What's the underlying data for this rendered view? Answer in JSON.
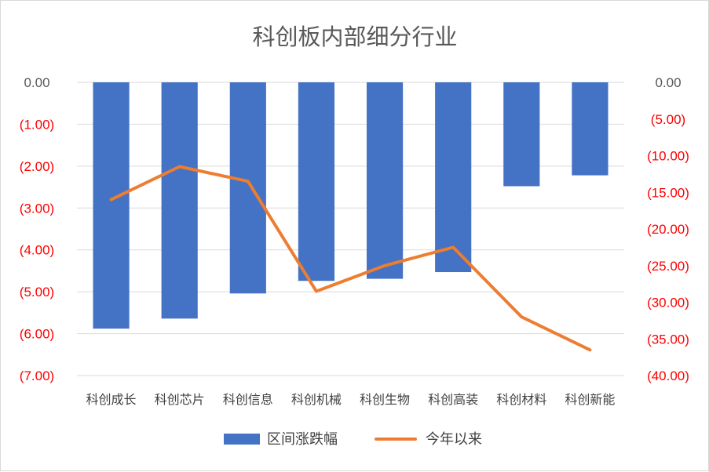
{
  "chart_data": {
    "type": "bar",
    "title": "科创板内部细分行业",
    "categories": [
      "科创成长",
      "科创芯片",
      "科创信息",
      "科创机械",
      "科创生物",
      "科创高装",
      "科创材料",
      "科创新能"
    ],
    "series": [
      {
        "name": "区间涨跌幅",
        "type": "bar",
        "axis": "left",
        "color": "#4472c4",
        "values": [
          -5.88,
          -5.64,
          -5.04,
          -4.74,
          -4.69,
          -4.53,
          -2.48,
          -2.22
        ]
      },
      {
        "name": "今年以来",
        "type": "line",
        "axis": "right",
        "color": "#ed7d31",
        "values": [
          -16.0,
          -11.5,
          -13.5,
          -28.5,
          -25.0,
          -22.5,
          -32.0,
          -36.5
        ]
      }
    ],
    "left_axis": {
      "ylim": [
        -7,
        0
      ],
      "ticks": [
        0,
        -1,
        -2,
        -3,
        -4,
        -5,
        -6,
        -7
      ],
      "tick_labels": [
        "0.00",
        "(1.00)",
        "(2.00)",
        "(3.00)",
        "(4.00)",
        "(5.00)",
        "(6.00)",
        "(7.00)"
      ]
    },
    "right_axis": {
      "ylim": [
        -40,
        0
      ],
      "ticks": [
        0,
        -5,
        -10,
        -15,
        -20,
        -25,
        -30,
        -35,
        -40
      ],
      "tick_labels": [
        "0.00",
        "(5.00)",
        "(10.00)",
        "(15.00)",
        "(20.00)",
        "(25.00)",
        "(30.00)",
        "(35.00)",
        "(40.00)"
      ]
    },
    "grid": true,
    "legend_position": "bottom",
    "label_colors": {
      "zero": "#595959",
      "negative": "#ff0000"
    }
  }
}
